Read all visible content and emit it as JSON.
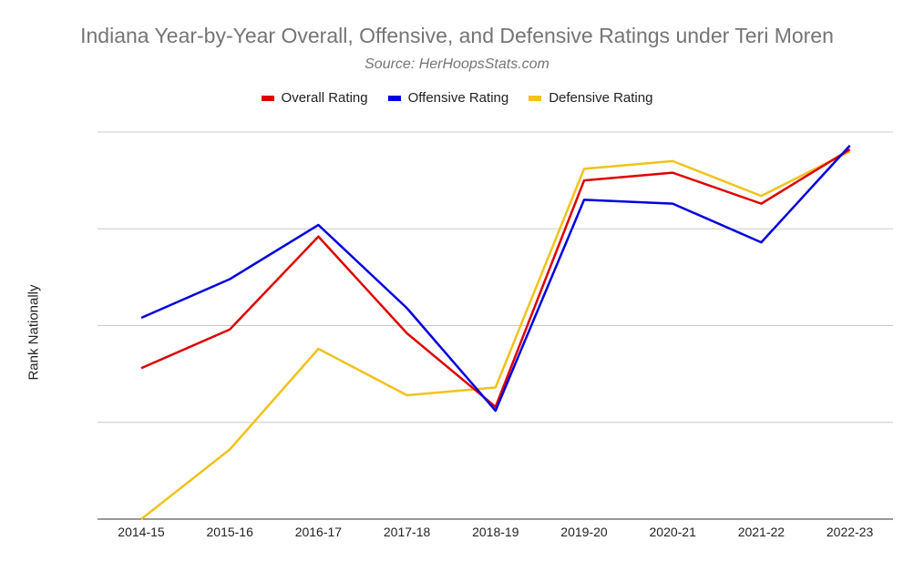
{
  "chart_data": {
    "type": "line",
    "title": "Indiana Year-by-Year Overall, Offensive, and Defensive Ratings under Teri Moren",
    "subtitle": "Source: HerHoopsStats.com",
    "xlabel": "",
    "ylabel": "Rank Nationally",
    "categories": [
      "2014-15",
      "2015-16",
      "2016-17",
      "2017-18",
      "2018-19",
      "2019-20",
      "2020-21",
      "2021-22",
      "2022-23"
    ],
    "y_tick_labels": "none shown",
    "ylim": [
      0,
      4
    ],
    "grid": true,
    "legend_position": "top",
    "series": [
      {
        "name": "Overall Rating",
        "color": "#dd0000",
        "values": [
          1.56,
          1.96,
          2.92,
          1.92,
          1.16,
          3.5,
          3.58,
          3.26,
          3.82
        ]
      },
      {
        "name": "Offensive Rating",
        "color": "#0000dd",
        "values": [
          2.08,
          2.48,
          3.04,
          2.18,
          1.12,
          3.3,
          3.26,
          2.86,
          3.86
        ]
      },
      {
        "name": "Defensive Rating",
        "color": "#f1c21b",
        "values": [
          0.0,
          0.72,
          1.76,
          1.28,
          1.36,
          3.62,
          3.7,
          3.34,
          3.8
        ]
      }
    ]
  }
}
